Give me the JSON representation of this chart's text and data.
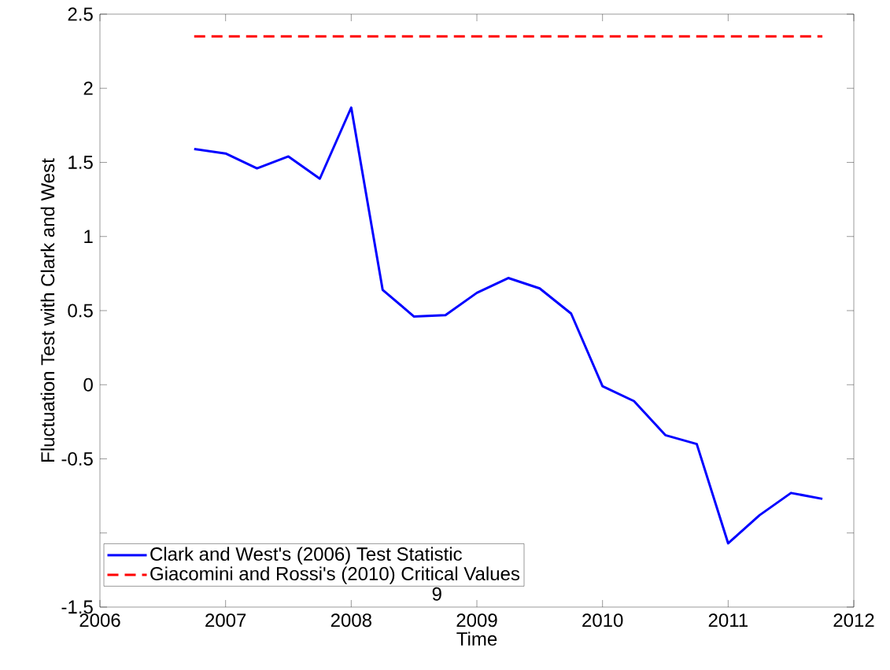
{
  "chart_data": {
    "type": "line",
    "xlabel": "Time",
    "ylabel": "Fluctuation Test with Clark and West",
    "x": [
      2006.75,
      2007.0,
      2007.25,
      2007.5,
      2007.75,
      2008.0,
      2008.25,
      2008.5,
      2008.75,
      2009.0,
      2009.25,
      2009.5,
      2009.75,
      2010.0,
      2010.25,
      2010.5,
      2010.75,
      2011.0,
      2011.25,
      2011.5,
      2011.75
    ],
    "series": [
      {
        "name": "Clark and West's (2006) Test Statistic",
        "color": "#0000ff",
        "line_style": "solid",
        "values": [
          1.59,
          1.56,
          1.46,
          1.54,
          1.39,
          1.87,
          0.64,
          0.46,
          0.47,
          0.62,
          0.72,
          0.65,
          0.48,
          -0.01,
          -0.11,
          -0.34,
          -0.4,
          -1.07,
          -0.88,
          -0.73,
          -0.77
        ]
      },
      {
        "name": "Giacomini and Rossi's (2010) Critical Values",
        "color": "#ff0000",
        "line_style": "dashed",
        "values": [
          2.35,
          2.35,
          2.35,
          2.35,
          2.35,
          2.35,
          2.35,
          2.35,
          2.35,
          2.35,
          2.35,
          2.35,
          2.35,
          2.35,
          2.35,
          2.35,
          2.35,
          2.35,
          2.35,
          2.35,
          2.35
        ]
      }
    ],
    "xlim": [
      2006,
      2012
    ],
    "xticks": [
      2006,
      2007,
      2008,
      2009,
      2010,
      2011,
      2012
    ],
    "ylim": [
      -1.5,
      2.5
    ],
    "yticks": [
      -1.5,
      {
        "value": -1,
        "label": null
      },
      -0.5,
      0,
      0.5,
      1,
      1.5,
      2,
      2.5
    ],
    "annotations": [
      "9"
    ],
    "legend": "bottom left",
    "grid": false,
    "marker": "none"
  }
}
